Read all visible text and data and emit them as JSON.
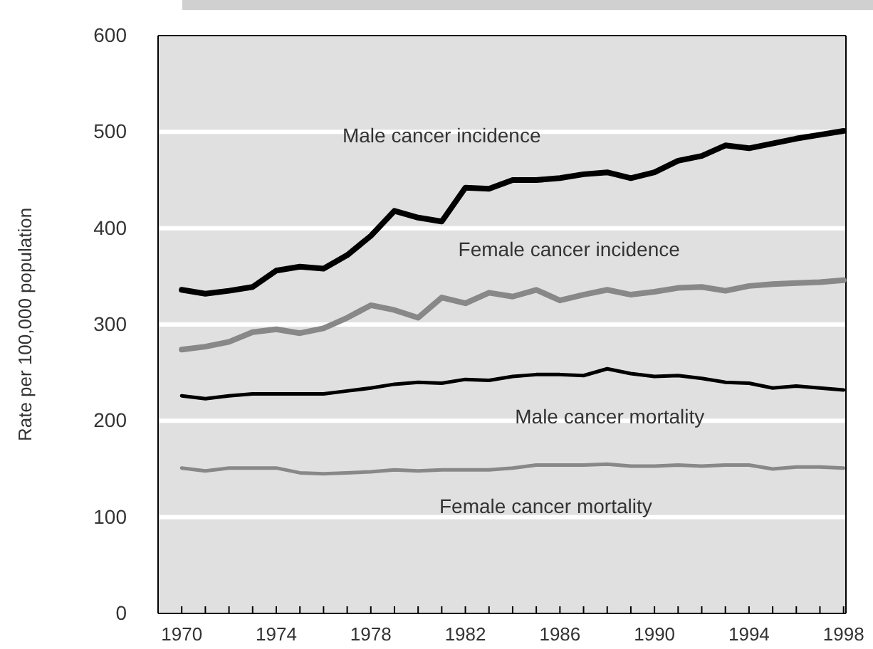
{
  "chart_data": {
    "type": "line",
    "ylabel": "Rate per 100,000 population",
    "x": [
      1970,
      1971,
      1972,
      1973,
      1974,
      1975,
      1976,
      1977,
      1978,
      1979,
      1980,
      1981,
      1982,
      1983,
      1984,
      1985,
      1986,
      1987,
      1988,
      1989,
      1990,
      1991,
      1992,
      1993,
      1994,
      1995,
      1996,
      1997,
      1998
    ],
    "series": [
      {
        "name": "Male cancer incidence",
        "color": "#000000",
        "values": [
          336,
          332,
          335,
          339,
          356,
          360,
          358,
          372,
          392,
          418,
          411,
          407,
          442,
          441,
          450,
          450,
          452,
          456,
          458,
          452,
          458,
          470,
          475,
          486,
          483,
          488,
          493,
          497,
          501
        ]
      },
      {
        "name": "Female cancer incidence",
        "color": "#888888",
        "values": [
          274,
          277,
          282,
          292,
          295,
          291,
          296,
          307,
          320,
          315,
          307,
          328,
          322,
          333,
          329,
          336,
          325,
          331,
          336,
          331,
          334,
          338,
          339,
          335,
          340,
          342,
          343,
          344,
          346
        ]
      },
      {
        "name": "Male cancer mortality",
        "color": "#000000",
        "values": [
          226,
          223,
          226,
          228,
          228,
          228,
          228,
          231,
          234,
          238,
          240,
          239,
          243,
          242,
          246,
          248,
          248,
          247,
          254,
          249,
          246,
          247,
          244,
          240,
          239,
          234,
          236,
          234,
          232
        ]
      },
      {
        "name": "Female cancer mortality",
        "color": "#888888",
        "values": [
          151,
          148,
          151,
          151,
          151,
          146,
          145,
          146,
          147,
          149,
          148,
          149,
          149,
          149,
          151,
          154,
          154,
          154,
          155,
          153,
          153,
          154,
          153,
          154,
          154,
          150,
          152,
          152,
          151
        ]
      }
    ],
    "xlim": [
      1969,
      1998.1
    ],
    "xticks": [
      1970,
      {
        "value": 1971,
        "label": null
      },
      {
        "value": 1972,
        "label": null
      },
      {
        "value": 1973,
        "label": null
      },
      1974,
      {
        "value": 1975,
        "label": null
      },
      {
        "value": 1976,
        "label": null
      },
      {
        "value": 1977,
        "label": null
      },
      1978,
      {
        "value": 1979,
        "label": null
      },
      {
        "value": 1980,
        "label": null
      },
      {
        "value": 1981,
        "label": null
      },
      1982,
      {
        "value": 1983,
        "label": null
      },
      {
        "value": 1984,
        "label": null
      },
      {
        "value": 1985,
        "label": null
      },
      1986,
      {
        "value": 1987,
        "label": null
      },
      {
        "value": 1988,
        "label": null
      },
      {
        "value": 1989,
        "label": null
      },
      1990,
      {
        "value": 1991,
        "label": null
      },
      {
        "value": 1992,
        "label": null
      },
      {
        "value": 1993,
        "label": null
      },
      1994,
      {
        "value": 1995,
        "label": null
      },
      {
        "value": 1996,
        "label": null
      },
      {
        "value": 1997,
        "label": null
      },
      1998
    ],
    "ylim": [
      0,
      600
    ],
    "yticks": [
      0,
      100,
      200,
      300,
      400,
      500,
      600
    ],
    "grid": "y",
    "legend": false,
    "marker": "none",
    "line_style": "solid"
  }
}
